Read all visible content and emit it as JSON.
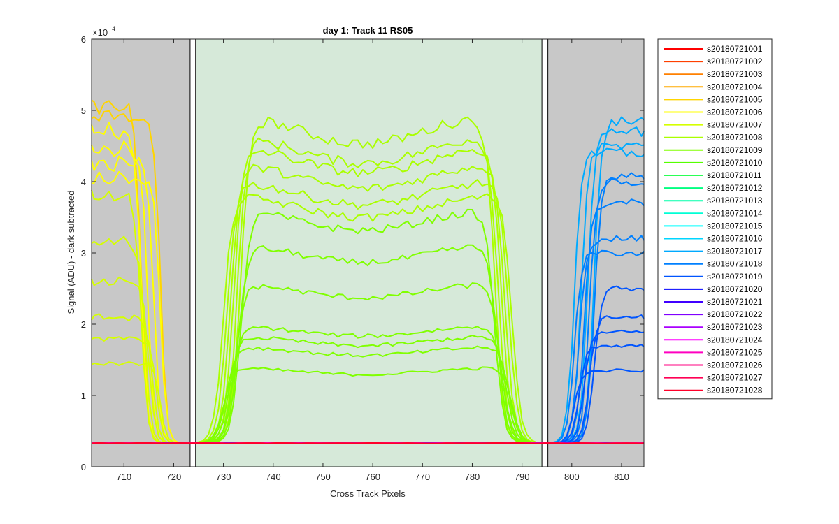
{
  "chart_data": {
    "type": "line",
    "title": "day 1: Track 11  RS05",
    "xlabel": "Cross Track Pixels",
    "ylabel": "Signal (ADU) - dark subtracted",
    "xlim": [
      703.5,
      814.5
    ],
    "ylim": [
      0,
      60000
    ],
    "xticks": [
      710,
      720,
      730,
      740,
      750,
      760,
      770,
      780,
      790,
      800,
      810
    ],
    "yticks": [
      0,
      10000,
      20000,
      30000,
      40000,
      50000,
      60000
    ],
    "ytick_labels": [
      "0",
      "1",
      "2",
      "3",
      "4",
      "5",
      "6"
    ],
    "y_exponent_base": "×10",
    "y_exponent_power": "4",
    "regions": [
      {
        "x0": 703.5,
        "x1": 723.3,
        "color": "#c8c8c8"
      },
      {
        "x0": 723.3,
        "x1": 724.4,
        "color": "#ffffff"
      },
      {
        "x0": 724.4,
        "x1": 794.0,
        "color": "#d6e9d9"
      },
      {
        "x0": 794.0,
        "x1": 795.2,
        "color": "#ffffff"
      },
      {
        "x0": 795.2,
        "x1": 814.5,
        "color": "#c8c8c8"
      }
    ],
    "baseline": 3300,
    "legend_position": "outside-right",
    "series": [
      {
        "name": "s20180721001",
        "color": "#ff0000"
      },
      {
        "name": "s20180721002",
        "color": "#ff4000"
      },
      {
        "name": "s20180721003",
        "color": "#ff8000"
      },
      {
        "name": "s20180721004",
        "color": "#ffaa00"
      },
      {
        "name": "s20180721005",
        "color": "#ffd500",
        "group": "left",
        "levels": [
          50500,
          49000
        ]
      },
      {
        "name": "s20180721006",
        "color": "#ffff00",
        "group": "left",
        "levels": [
          47000,
          44500,
          42500,
          40500
        ]
      },
      {
        "name": "s20180721007",
        "color": "#d5ff00",
        "group": "left",
        "levels": [
          38000,
          31500,
          26000,
          21000,
          18000,
          14500
        ]
      },
      {
        "name": "s20180721008",
        "color": "#aaff00",
        "group": "center",
        "levels": [
          50000,
          47000,
          45500,
          43000,
          40500,
          38500
        ]
      },
      {
        "name": "s20180721009",
        "color": "#80ff00",
        "group": "center",
        "levels": [
          36500,
          31500,
          26000,
          20000,
          18500,
          17000,
          14000
        ]
      },
      {
        "name": "s20180721010",
        "color": "#55ff00"
      },
      {
        "name": "s20180721011",
        "color": "#2aff55"
      },
      {
        "name": "s20180721012",
        "color": "#00ff80"
      },
      {
        "name": "s20180721013",
        "color": "#00ffaa"
      },
      {
        "name": "s20180721014",
        "color": "#00ffd5"
      },
      {
        "name": "s20180721015",
        "color": "#00ffff"
      },
      {
        "name": "s20180721016",
        "color": "#00d5ff"
      },
      {
        "name": "s20180721017",
        "color": "#00aaff",
        "group": "right",
        "levels": [
          48500,
          47000,
          45000,
          44000
        ]
      },
      {
        "name": "s20180721018",
        "color": "#0080ff",
        "group": "right",
        "levels": [
          41000,
          40000,
          37000,
          32000,
          30000
        ]
      },
      {
        "name": "s20180721019",
        "color": "#0055ff",
        "group": "right",
        "levels": [
          25000,
          21000,
          19000,
          17000,
          13500
        ]
      },
      {
        "name": "s20180721020",
        "color": "#0000ff"
      },
      {
        "name": "s20180721021",
        "color": "#4000ff"
      },
      {
        "name": "s20180721022",
        "color": "#8000ff"
      },
      {
        "name": "s20180721023",
        "color": "#aa00ff"
      },
      {
        "name": "s20180721024",
        "color": "#ff00ff"
      },
      {
        "name": "s20180721025",
        "color": "#ff00c0"
      },
      {
        "name": "s20180721026",
        "color": "#ff0080"
      },
      {
        "name": "s20180721027",
        "color": "#ff0055"
      },
      {
        "name": "s20180721028",
        "color": "#ff002a"
      }
    ]
  }
}
